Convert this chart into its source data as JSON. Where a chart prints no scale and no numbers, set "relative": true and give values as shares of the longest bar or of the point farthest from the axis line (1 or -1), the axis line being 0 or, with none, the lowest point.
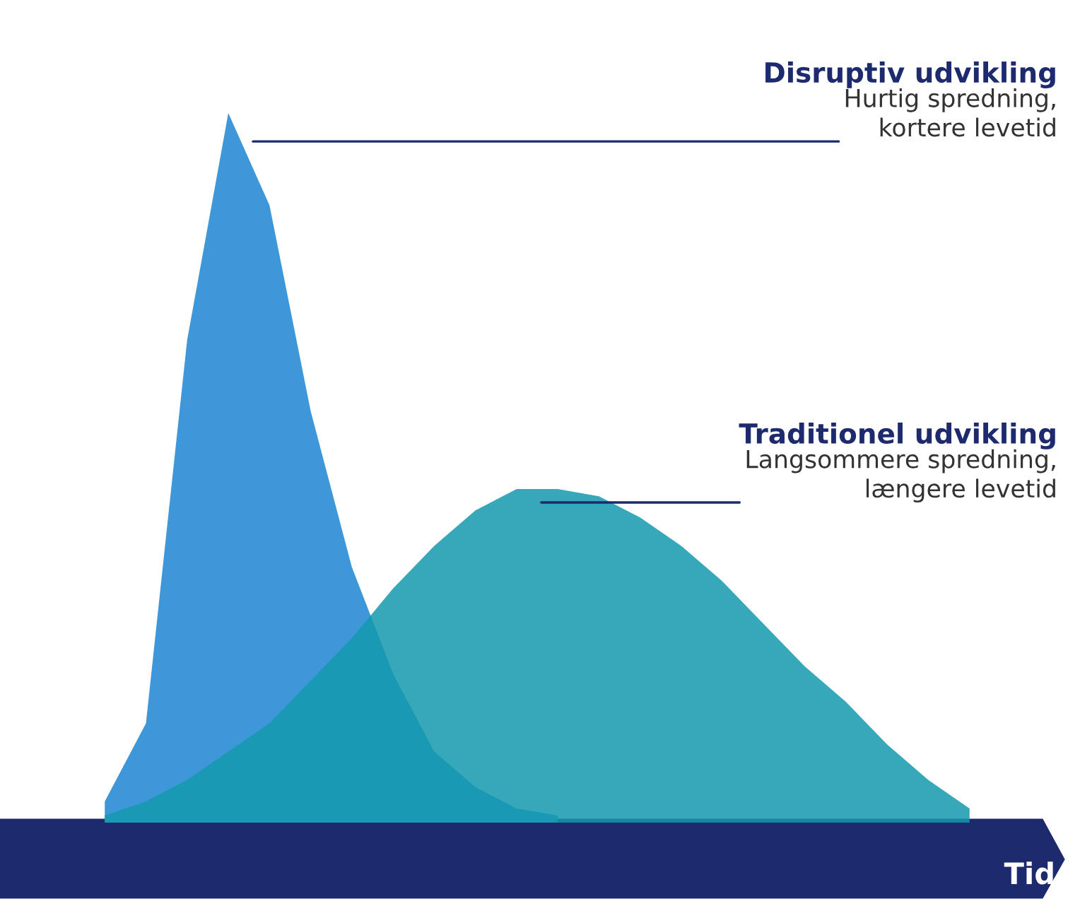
{
  "chart_data": {
    "type": "area",
    "relative": true,
    "xlabel": "Tid",
    "categories": [
      null,
      null,
      null,
      null,
      null,
      null,
      null,
      null,
      null,
      null,
      null,
      null,
      null,
      null,
      null,
      null,
      null,
      null,
      null,
      null,
      null,
      null,
      null,
      null
    ],
    "series": [
      {
        "color": "#3d97d8",
        "values": [
          null,
          0.03,
          0.14,
          0.68,
          1.0,
          0.87,
          0.58,
          0.36,
          0.21,
          0.1,
          0.05,
          0.02,
          0.01,
          null,
          null,
          null,
          null,
          null,
          null,
          null,
          null,
          null,
          null,
          null
        ]
      },
      {
        "color": "#1399ad",
        "values": [
          null,
          0.01,
          0.03,
          0.06,
          0.1,
          0.14,
          0.2,
          0.26,
          0.33,
          0.39,
          0.44,
          0.47,
          0.47,
          0.46,
          0.43,
          0.39,
          0.34,
          0.28,
          0.22,
          0.17,
          0.11,
          0.06,
          0.02,
          null
        ]
      }
    ],
    "annotations": [
      "Disruptiv udvikling",
      "Hurtig spredning,\nkortere levetid",
      "Traditionel udvikling",
      "Langsommere spredning,\nlængere levetid"
    ],
    "grid": false,
    "legend": false
  }
}
